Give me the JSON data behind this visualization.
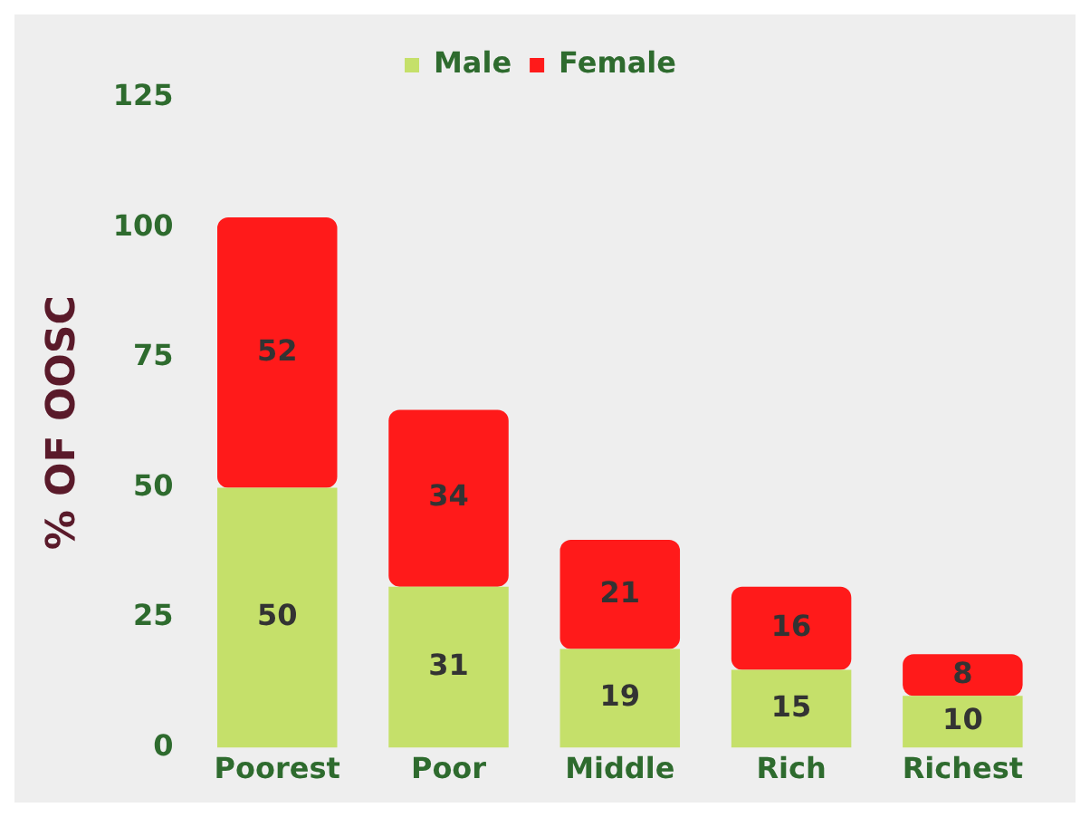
{
  "chart_data": {
    "type": "bar",
    "stacked": true,
    "ylabel": "% OF OOSC",
    "categories": [
      "Poorest",
      "Poor",
      "Middle",
      "Rich",
      "Richest"
    ],
    "series": [
      {
        "name": "Male",
        "color": "#c5e06a",
        "values": [
          50,
          31,
          19,
          15,
          10
        ]
      },
      {
        "name": "Female",
        "color": "#ff1a1a",
        "values": [
          52,
          34,
          21,
          16,
          8
        ]
      }
    ],
    "ylim": [
      0,
      125
    ],
    "yticks": [
      0,
      25,
      50,
      75,
      100,
      125
    ],
    "grid": false,
    "legend": "top",
    "data_labels": true
  }
}
